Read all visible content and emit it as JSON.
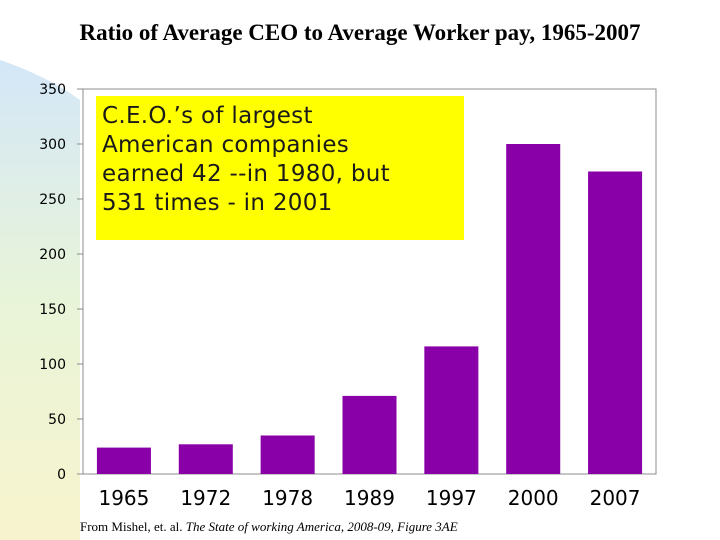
{
  "chart_data": {
    "type": "bar",
    "title": "Ratio of Average CEO to Average Worker pay, 1965-2007",
    "categories": [
      "1965",
      "1972",
      "1978",
      "1989",
      "1997",
      "2000",
      "2007"
    ],
    "values": [
      24,
      27,
      35,
      71,
      116,
      300,
      275
    ],
    "ylim": [
      0,
      350
    ],
    "yticks": [
      0,
      50,
      100,
      150,
      200,
      250,
      300,
      350
    ],
    "grid": false,
    "bar_color": "#8a00a8",
    "xlabel": "",
    "ylabel": ""
  },
  "callout": {
    "lines": [
      "C.E.O.’s of largest",
      "American companies",
      "earned 42 --in 1980, but",
      "531 times - in 2001"
    ],
    "color": "#ffff00"
  },
  "source": {
    "prefix": "From Mishel, et. al. ",
    "title_italic": "The State of working America, 2008-09, Figure 3AE"
  }
}
